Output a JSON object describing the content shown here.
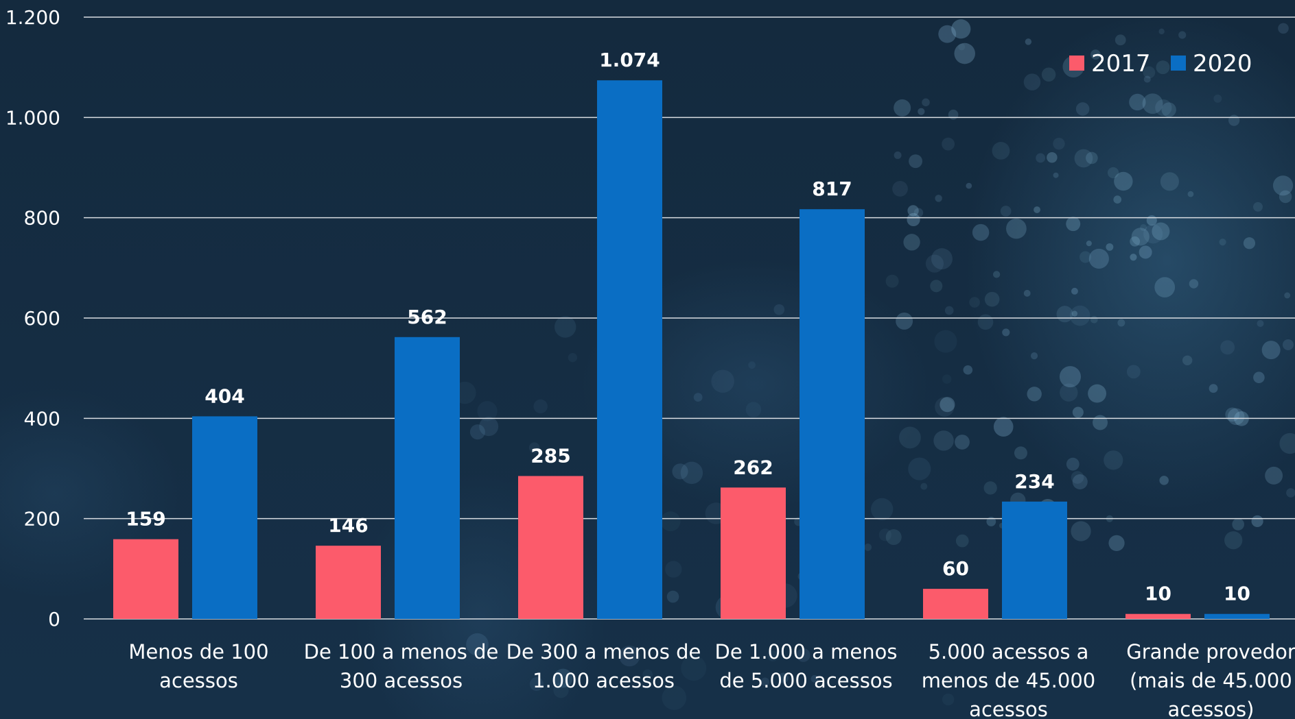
{
  "chart_data": {
    "type": "bar",
    "categories": [
      [
        "Menos de 100",
        "acessos"
      ],
      [
        "De 100 a menos de",
        "300 acessos"
      ],
      [
        "De 300 a menos de",
        "1.000 acessos"
      ],
      [
        "De 1.000 a menos",
        "de 5.000 acessos"
      ],
      [
        "5.000 acessos a",
        "menos de 45.000",
        "acessos"
      ],
      [
        "Grande provedor",
        "(mais de 45.000",
        "acessos)"
      ]
    ],
    "series": [
      {
        "name": "2017",
        "color": "#fc5b6b",
        "values": [
          159,
          146,
          285,
          262,
          60,
          10
        ],
        "labels": [
          "159",
          "146",
          "285",
          "262",
          "60",
          "10"
        ]
      },
      {
        "name": "2020",
        "color": "#0a6ec4",
        "values": [
          404,
          562,
          1074,
          817,
          234,
          10
        ],
        "labels": [
          "404",
          "562",
          "1.074",
          "817",
          "234",
          "10"
        ]
      }
    ],
    "ylim": [
      0,
      1200
    ],
    "yticks": [
      0,
      200,
      400,
      600,
      800,
      1000,
      1200
    ],
    "ytick_labels": [
      "0",
      "200",
      "400",
      "600",
      "800",
      "1.000",
      "1.200"
    ],
    "grid": true,
    "legend_position": "top-right",
    "colors": {
      "background": "#152b40",
      "grid": "#d9dde2",
      "text": "#ffffff"
    }
  }
}
